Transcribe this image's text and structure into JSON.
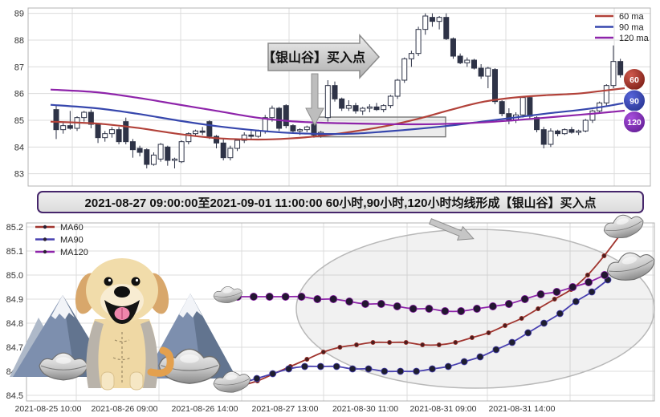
{
  "page": {
    "background": "#ffffff"
  },
  "banner": {
    "text": "2021-08-27 09:00:00至2021-09-01 11:00:00 60小时,90小时,120小时均线形成【银山谷】买入点",
    "border_color": "#46266b"
  },
  "chart_data": [
    {
      "id": "hourly-candlestick",
      "type": "candlestick",
      "title": "",
      "ylabel": "",
      "ylim": [
        82.8,
        89.3
      ],
      "yticks": [
        83,
        84,
        85,
        86,
        87,
        88,
        89
      ],
      "grid": true,
      "legend_position": "top-right",
      "legend": [
        {
          "label": "60 ma",
          "color": "#b2423a"
        },
        {
          "label": "90 ma",
          "color": "#3747ad"
        },
        {
          "label": "120 ma",
          "color": "#8e24aa"
        }
      ],
      "end_badges": [
        {
          "label": "60",
          "color_light": "#cf5a4e",
          "color_dark": "#7b1d15",
          "value": 86.5
        },
        {
          "label": "90",
          "color_light": "#5563d8",
          "color_dark": "#283593",
          "value": 85.7
        },
        {
          "label": "120",
          "color_light": "#a64ddb",
          "color_dark": "#641e96",
          "value": 84.95
        }
      ],
      "annotations": {
        "callout_text": "【银山谷】买入点",
        "highlight_rect": {
          "x_range": [
            390,
            555
          ],
          "value_range": [
            84.38,
            85.12
          ]
        },
        "down_arrow_x": 392
      },
      "candle_colors": {
        "up_fill": "#ffffff",
        "down_fill": "#2e3347",
        "border": "#2e3347"
      },
      "candles_ohlc": [
        [
          85.4,
          85.55,
          84.3,
          84.65
        ],
        [
          84.65,
          84.9,
          84.5,
          84.8
        ],
        [
          84.8,
          85.35,
          84.65,
          84.7
        ],
        [
          84.7,
          85.15,
          84.6,
          85.1
        ],
        [
          85.1,
          85.35,
          84.95,
          85.3
        ],
        [
          85.3,
          85.4,
          84.7,
          84.85
        ],
        [
          84.85,
          84.9,
          84.15,
          84.35
        ],
        [
          84.35,
          84.6,
          84.2,
          84.5
        ],
        [
          84.5,
          84.75,
          84.35,
          84.65
        ],
        [
          84.65,
          84.75,
          84.1,
          84.2
        ],
        [
          84.95,
          85.1,
          84.1,
          84.2
        ],
        [
          84.2,
          84.3,
          83.6,
          83.9
        ],
        [
          83.95,
          84.05,
          83.65,
          83.8
        ],
        [
          83.9,
          83.95,
          83.2,
          83.35
        ],
        [
          83.35,
          83.8,
          83.3,
          83.7
        ],
        [
          83.55,
          84.15,
          83.45,
          84.1
        ],
        [
          84.0,
          84.05,
          83.3,
          83.5
        ],
        [
          83.5,
          83.6,
          83.2,
          83.55
        ],
        [
          83.45,
          84.25,
          83.4,
          84.2
        ],
        [
          84.2,
          84.55,
          84.1,
          84.5
        ],
        [
          84.5,
          84.65,
          84.4,
          84.6
        ],
        [
          84.6,
          84.75,
          84.45,
          84.55
        ],
        [
          84.95,
          85.0,
          84.3,
          84.4
        ],
        [
          84.4,
          84.45,
          83.95,
          84.15
        ],
        [
          84.15,
          84.3,
          83.5,
          83.6
        ],
        [
          83.6,
          84.05,
          83.5,
          83.95
        ],
        [
          83.95,
          84.3,
          83.85,
          84.25
        ],
        [
          84.25,
          84.55,
          84.15,
          84.45
        ],
        [
          84.45,
          84.6,
          84.3,
          84.4
        ],
        [
          84.4,
          84.65,
          84.35,
          84.6
        ],
        [
          84.6,
          85.2,
          84.5,
          85.1
        ],
        [
          85.1,
          85.55,
          84.95,
          85.45
        ],
        [
          85.45,
          85.5,
          84.6,
          84.7
        ],
        [
          85.55,
          85.6,
          84.7,
          84.8
        ],
        [
          84.8,
          84.85,
          84.5,
          84.6
        ],
        [
          84.6,
          84.7,
          84.45,
          84.65
        ],
        [
          84.65,
          84.8,
          84.55,
          84.75
        ],
        [
          84.85,
          84.9,
          84.35,
          84.45
        ],
        [
          84.45,
          84.6,
          84.35,
          84.55
        ],
        [
          85.1,
          86.5,
          84.95,
          86.3
        ],
        [
          86.3,
          86.45,
          85.7,
          85.8
        ],
        [
          85.8,
          85.85,
          85.35,
          85.45
        ],
        [
          85.45,
          85.75,
          85.35,
          85.55
        ],
        [
          85.55,
          85.65,
          85.25,
          85.35
        ],
        [
          85.35,
          85.5,
          85.2,
          85.45
        ],
        [
          85.45,
          85.6,
          85.3,
          85.5
        ],
        [
          85.5,
          85.65,
          85.35,
          85.4
        ],
        [
          85.4,
          85.6,
          85.3,
          85.55
        ],
        [
          85.55,
          85.95,
          85.45,
          85.9
        ],
        [
          85.9,
          86.55,
          85.8,
          86.5
        ],
        [
          86.5,
          87.35,
          86.4,
          87.3
        ],
        [
          87.3,
          87.6,
          87.0,
          87.5
        ],
        [
          87.5,
          88.5,
          87.4,
          88.4
        ],
        [
          88.4,
          89.0,
          88.2,
          88.9
        ],
        [
          88.85,
          89.0,
          88.5,
          88.7
        ],
        [
          88.7,
          88.9,
          88.4,
          88.85
        ],
        [
          88.85,
          89.0,
          88.0,
          88.05
        ],
        [
          88.05,
          88.1,
          87.3,
          87.4
        ],
        [
          87.4,
          87.5,
          87.1,
          87.15
        ],
        [
          87.15,
          87.35,
          87.0,
          87.25
        ],
        [
          87.25,
          87.3,
          86.9,
          86.95
        ],
        [
          86.95,
          87.1,
          86.55,
          86.65
        ],
        [
          86.65,
          87.0,
          86.2,
          86.95
        ],
        [
          86.9,
          86.95,
          85.6,
          85.7
        ],
        [
          85.7,
          85.75,
          85.15,
          85.25
        ],
        [
          85.25,
          85.45,
          84.85,
          85.0
        ],
        [
          85.0,
          85.3,
          84.9,
          85.2
        ],
        [
          85.2,
          85.9,
          85.1,
          85.85
        ],
        [
          85.85,
          85.9,
          85.05,
          85.15
        ],
        [
          85.1,
          85.15,
          84.55,
          84.65
        ],
        [
          84.65,
          84.75,
          83.95,
          84.1
        ],
        [
          84.1,
          84.7,
          84.0,
          84.6
        ],
        [
          84.6,
          84.65,
          84.4,
          84.5
        ],
        [
          84.5,
          84.7,
          84.45,
          84.65
        ],
        [
          84.65,
          84.75,
          84.5,
          84.55
        ],
        [
          84.55,
          84.65,
          84.45,
          84.6
        ],
        [
          84.6,
          85.05,
          84.55,
          85.0
        ],
        [
          85.0,
          85.4,
          84.9,
          85.35
        ],
        [
          85.35,
          85.7,
          85.25,
          85.65
        ],
        [
          85.65,
          86.35,
          85.55,
          86.3
        ],
        [
          86.3,
          87.8,
          86.2,
          87.2
        ],
        [
          87.2,
          87.3,
          86.6,
          86.7
        ],
        [
          86.7,
          86.8,
          86.2,
          86.3
        ],
        [
          86.3,
          86.4,
          85.9,
          86.0
        ]
      ],
      "ma_series": [
        {
          "name": "60 ma",
          "color": "#b2423a",
          "points": [
            [
              63,
              84.95
            ],
            [
              120,
              84.88
            ],
            [
              170,
              84.72
            ],
            [
              220,
              84.5
            ],
            [
              270,
              84.33
            ],
            [
              320,
              84.28
            ],
            [
              360,
              84.32
            ],
            [
              400,
              84.42
            ],
            [
              440,
              84.58
            ],
            [
              480,
              84.78
            ],
            [
              520,
              85.05
            ],
            [
              560,
              85.38
            ],
            [
              600,
              85.68
            ],
            [
              640,
              85.85
            ],
            [
              680,
              85.94
            ],
            [
              720,
              86.0
            ],
            [
              750,
              86.1
            ],
            [
              778,
              86.2
            ]
          ]
        },
        {
          "name": "90 ma",
          "color": "#3747ad",
          "points": [
            [
              63,
              85.58
            ],
            [
              120,
              85.45
            ],
            [
              170,
              85.25
            ],
            [
              220,
              85.0
            ],
            [
              270,
              84.78
            ],
            [
              320,
              84.62
            ],
            [
              360,
              84.53
            ],
            [
              400,
              84.49
            ],
            [
              440,
              84.5
            ],
            [
              480,
              84.58
            ],
            [
              520,
              84.68
            ],
            [
              560,
              84.8
            ],
            [
              600,
              84.95
            ],
            [
              640,
              85.1
            ],
            [
              680,
              85.25
            ],
            [
              720,
              85.38
            ],
            [
              750,
              85.5
            ],
            [
              778,
              85.65
            ]
          ]
        },
        {
          "name": "120 ma",
          "color": "#8e24aa",
          "points": [
            [
              63,
              86.15
            ],
            [
              120,
              86.05
            ],
            [
              170,
              85.85
            ],
            [
              220,
              85.6
            ],
            [
              270,
              85.35
            ],
            [
              320,
              85.1
            ],
            [
              360,
              84.97
            ],
            [
              400,
              84.91
            ],
            [
              440,
              84.88
            ],
            [
              480,
              84.86
            ],
            [
              520,
              84.85
            ],
            [
              560,
              84.87
            ],
            [
              600,
              84.92
            ],
            [
              640,
              85.0
            ],
            [
              680,
              85.1
            ],
            [
              720,
              85.2
            ],
            [
              750,
              85.28
            ],
            [
              778,
              85.36
            ]
          ]
        }
      ]
    },
    {
      "id": "ma-detail",
      "type": "line",
      "title": "",
      "ylim": [
        84.45,
        85.25
      ],
      "yticks": [
        84.5,
        84.6,
        84.7,
        84.8,
        84.9,
        85.0,
        85.1,
        85.2
      ],
      "xtick_labels": [
        "2021-08-25 10:00",
        "2021-08-26 09:00",
        "2021-08-26 14:00",
        "2021-08-27 13:00",
        "2021-08-30 11:00",
        "2021-08-31 09:00",
        "2021-08-31 14:00"
      ],
      "grid": true,
      "legend_position": "top-left",
      "legend": [
        {
          "label": "MA60",
          "color": "#a0342e"
        },
        {
          "label": "MA90",
          "color": "#4840b0"
        },
        {
          "label": "MA120",
          "color": "#8e24aa"
        }
      ],
      "series": [
        {
          "name": "MA60",
          "color": "#a0342e",
          "marker_color": "#4a1d1d",
          "marker_r": 2.6,
          "x_start": 300,
          "x_end": 773,
          "values": [
            84.54,
            84.56,
            84.59,
            84.62,
            84.65,
            84.68,
            84.7,
            84.71,
            84.72,
            84.72,
            84.72,
            84.71,
            84.71,
            84.72,
            84.74,
            84.76,
            84.79,
            84.82,
            84.86,
            84.9,
            84.94,
            85.0,
            85.08,
            85.17
          ]
        },
        {
          "name": "MA90",
          "color": "#4840b0",
          "marker_color": "#1e1e30",
          "marker_r": 4.0,
          "x_start": 300,
          "x_end": 757,
          "values": [
            84.55,
            84.57,
            84.59,
            84.61,
            84.62,
            84.62,
            84.62,
            84.61,
            84.61,
            84.6,
            84.6,
            84.6,
            84.61,
            84.62,
            84.64,
            84.66,
            84.69,
            84.72,
            84.76,
            84.8,
            84.84,
            84.89,
            84.93,
            84.98
          ]
        },
        {
          "name": "MA120",
          "color": "#8e24aa",
          "marker_color": "#231631",
          "marker_r": 4.6,
          "x_start": 296,
          "x_end": 753,
          "values": [
            84.91,
            84.91,
            84.91,
            84.91,
            84.91,
            84.9,
            84.9,
            84.89,
            84.88,
            84.88,
            84.87,
            84.86,
            84.86,
            84.85,
            84.85,
            84.86,
            84.87,
            84.88,
            84.9,
            84.92,
            84.93,
            84.95,
            84.97,
            85.0
          ]
        }
      ],
      "decorations": [
        "puppy-dog",
        "snow-mountains",
        "silver-ingots",
        "highlight-ellipse",
        "banner-arrow"
      ]
    }
  ]
}
